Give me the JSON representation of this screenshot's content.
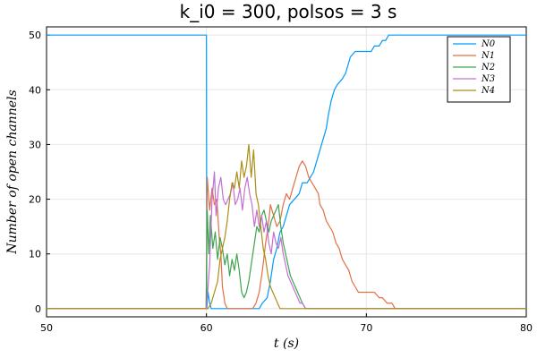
{
  "chart_data": {
    "type": "line",
    "title": "k_i0 = 300, polsos = 3 s",
    "xlabel": "t (s)",
    "ylabel": "Number of open channels",
    "xlim": [
      50,
      80
    ],
    "ylim": [
      -1.5,
      51.5
    ],
    "xticks": [
      50,
      60,
      70,
      80
    ],
    "yticks": [
      0,
      10,
      20,
      30,
      40,
      50
    ],
    "grid": true,
    "legend": "top-right",
    "series": [
      {
        "name": "N0",
        "color": "#009AFA",
        "points": [
          [
            50,
            50
          ],
          [
            60,
            50
          ],
          [
            60.02,
            0
          ],
          [
            60.1,
            3
          ],
          [
            60.2,
            1
          ],
          [
            60.3,
            0
          ],
          [
            61.0,
            0
          ],
          [
            61.5,
            0
          ],
          [
            62.0,
            0
          ],
          [
            62.5,
            0
          ],
          [
            63.0,
            0
          ],
          [
            63.3,
            0
          ],
          [
            63.5,
            1
          ],
          [
            63.8,
            2
          ],
          [
            64.0,
            5
          ],
          [
            64.2,
            9
          ],
          [
            64.4,
            11
          ],
          [
            64.6,
            14
          ],
          [
            64.8,
            15
          ],
          [
            65.0,
            17
          ],
          [
            65.2,
            19
          ],
          [
            65.5,
            20
          ],
          [
            65.8,
            21
          ],
          [
            66.0,
            23
          ],
          [
            66.3,
            23
          ],
          [
            66.5,
            24
          ],
          [
            66.7,
            25
          ],
          [
            66.9,
            27
          ],
          [
            67.1,
            29
          ],
          [
            67.3,
            31
          ],
          [
            67.5,
            33
          ],
          [
            67.6,
            35
          ],
          [
            67.8,
            38
          ],
          [
            68.0,
            40
          ],
          [
            68.2,
            41
          ],
          [
            68.5,
            42
          ],
          [
            68.7,
            43
          ],
          [
            68.9,
            45
          ],
          [
            69.0,
            46
          ],
          [
            69.3,
            47
          ],
          [
            69.8,
            47
          ],
          [
            70.3,
            47
          ],
          [
            70.5,
            48
          ],
          [
            70.8,
            48
          ],
          [
            71.0,
            49
          ],
          [
            71.2,
            49
          ],
          [
            71.4,
            50
          ],
          [
            80,
            50
          ]
        ]
      },
      {
        "name": "N1",
        "color": "#E26F46",
        "points": [
          [
            50,
            0
          ],
          [
            59.98,
            0
          ],
          [
            60.05,
            24
          ],
          [
            60.2,
            18
          ],
          [
            60.35,
            22
          ],
          [
            60.5,
            19
          ],
          [
            60.65,
            20
          ],
          [
            60.8,
            13
          ],
          [
            60.9,
            10
          ],
          [
            61.0,
            4
          ],
          [
            61.15,
            1
          ],
          [
            61.3,
            0
          ],
          [
            62.0,
            0
          ],
          [
            62.5,
            0
          ],
          [
            62.9,
            0
          ],
          [
            63.1,
            1
          ],
          [
            63.3,
            3
          ],
          [
            63.5,
            7
          ],
          [
            63.7,
            12
          ],
          [
            63.9,
            16
          ],
          [
            64.0,
            19
          ],
          [
            64.2,
            17
          ],
          [
            64.4,
            15
          ],
          [
            64.6,
            16
          ],
          [
            64.8,
            19
          ],
          [
            65.0,
            21
          ],
          [
            65.2,
            20
          ],
          [
            65.4,
            22
          ],
          [
            65.6,
            24
          ],
          [
            65.8,
            26
          ],
          [
            66.0,
            27
          ],
          [
            66.2,
            26
          ],
          [
            66.4,
            24
          ],
          [
            66.6,
            23
          ],
          [
            66.8,
            22
          ],
          [
            67.0,
            21
          ],
          [
            67.1,
            19
          ],
          [
            67.3,
            18
          ],
          [
            67.5,
            16
          ],
          [
            67.7,
            15
          ],
          [
            67.9,
            14
          ],
          [
            68.1,
            12
          ],
          [
            68.3,
            11
          ],
          [
            68.5,
            9
          ],
          [
            68.7,
            8
          ],
          [
            68.9,
            7
          ],
          [
            69.1,
            5
          ],
          [
            69.3,
            4
          ],
          [
            69.5,
            3
          ],
          [
            70.0,
            3
          ],
          [
            70.5,
            3
          ],
          [
            70.8,
            2
          ],
          [
            71.0,
            2
          ],
          [
            71.3,
            1
          ],
          [
            71.6,
            1
          ],
          [
            71.8,
            0
          ],
          [
            80,
            0
          ]
        ]
      },
      {
        "name": "N2",
        "color": "#3DA44D",
        "points": [
          [
            50,
            0
          ],
          [
            59.98,
            0
          ],
          [
            60.05,
            18
          ],
          [
            60.15,
            10
          ],
          [
            60.25,
            17
          ],
          [
            60.4,
            11
          ],
          [
            60.55,
            14
          ],
          [
            60.7,
            9
          ],
          [
            60.85,
            13
          ],
          [
            61.0,
            11
          ],
          [
            61.15,
            8
          ],
          [
            61.3,
            10
          ],
          [
            61.45,
            6
          ],
          [
            61.6,
            9
          ],
          [
            61.75,
            7
          ],
          [
            61.9,
            10
          ],
          [
            62.05,
            7
          ],
          [
            62.2,
            3
          ],
          [
            62.35,
            2
          ],
          [
            62.5,
            3
          ],
          [
            62.65,
            5
          ],
          [
            62.8,
            8
          ],
          [
            63.0,
            12
          ],
          [
            63.15,
            15
          ],
          [
            63.3,
            14
          ],
          [
            63.45,
            17
          ],
          [
            63.6,
            18
          ],
          [
            63.75,
            16
          ],
          [
            63.9,
            14
          ],
          [
            64.05,
            16
          ],
          [
            64.2,
            17
          ],
          [
            64.35,
            18
          ],
          [
            64.5,
            19
          ],
          [
            64.65,
            15
          ],
          [
            64.8,
            12
          ],
          [
            64.95,
            10
          ],
          [
            65.1,
            8
          ],
          [
            65.25,
            6
          ],
          [
            65.4,
            5
          ],
          [
            65.55,
            4
          ],
          [
            65.7,
            3
          ],
          [
            65.85,
            2
          ],
          [
            66.0,
            1
          ],
          [
            66.2,
            0
          ],
          [
            80,
            0
          ]
        ]
      },
      {
        "name": "N3",
        "color": "#C271D2",
        "points": [
          [
            50,
            0
          ],
          [
            59.98,
            0
          ],
          [
            60.05,
            2
          ],
          [
            60.2,
            8
          ],
          [
            60.35,
            20
          ],
          [
            60.5,
            25
          ],
          [
            60.6,
            17
          ],
          [
            60.75,
            22
          ],
          [
            60.9,
            24
          ],
          [
            61.05,
            20
          ],
          [
            61.2,
            19
          ],
          [
            61.35,
            20
          ],
          [
            61.5,
            21
          ],
          [
            61.65,
            23
          ],
          [
            61.8,
            19
          ],
          [
            61.95,
            20
          ],
          [
            62.1,
            22
          ],
          [
            62.25,
            18
          ],
          [
            62.4,
            22
          ],
          [
            62.55,
            24
          ],
          [
            62.7,
            21
          ],
          [
            62.85,
            19
          ],
          [
            63.0,
            15
          ],
          [
            63.15,
            18
          ],
          [
            63.3,
            15
          ],
          [
            63.45,
            17
          ],
          [
            63.6,
            14
          ],
          [
            63.75,
            16
          ],
          [
            63.9,
            12
          ],
          [
            64.05,
            10
          ],
          [
            64.2,
            14
          ],
          [
            64.35,
            12
          ],
          [
            64.5,
            11
          ],
          [
            64.65,
            13
          ],
          [
            64.8,
            10
          ],
          [
            64.95,
            8
          ],
          [
            65.1,
            6
          ],
          [
            65.25,
            5
          ],
          [
            65.4,
            4
          ],
          [
            65.55,
            3
          ],
          [
            65.7,
            2
          ],
          [
            65.85,
            1
          ],
          [
            66.0,
            1
          ],
          [
            66.2,
            0
          ],
          [
            80,
            0
          ]
        ]
      },
      {
        "name": "N4",
        "color": "#AC8E18",
        "points": [
          [
            50,
            0
          ],
          [
            59.98,
            0
          ],
          [
            60.1,
            0
          ],
          [
            60.3,
            1
          ],
          [
            60.5,
            3
          ],
          [
            60.7,
            5
          ],
          [
            60.85,
            9
          ],
          [
            61.0,
            11
          ],
          [
            61.15,
            13
          ],
          [
            61.3,
            16
          ],
          [
            61.45,
            20
          ],
          [
            61.6,
            23
          ],
          [
            61.75,
            22
          ],
          [
            61.9,
            25
          ],
          [
            62.05,
            22
          ],
          [
            62.2,
            27
          ],
          [
            62.35,
            24
          ],
          [
            62.5,
            26
          ],
          [
            62.65,
            30
          ],
          [
            62.8,
            24
          ],
          [
            62.95,
            29
          ],
          [
            63.1,
            21
          ],
          [
            63.25,
            19
          ],
          [
            63.4,
            15
          ],
          [
            63.55,
            11
          ],
          [
            63.7,
            9
          ],
          [
            63.85,
            6
          ],
          [
            64.0,
            4
          ],
          [
            64.15,
            3
          ],
          [
            64.3,
            2
          ],
          [
            64.45,
            1
          ],
          [
            64.6,
            0
          ],
          [
            80,
            0
          ]
        ]
      }
    ]
  }
}
